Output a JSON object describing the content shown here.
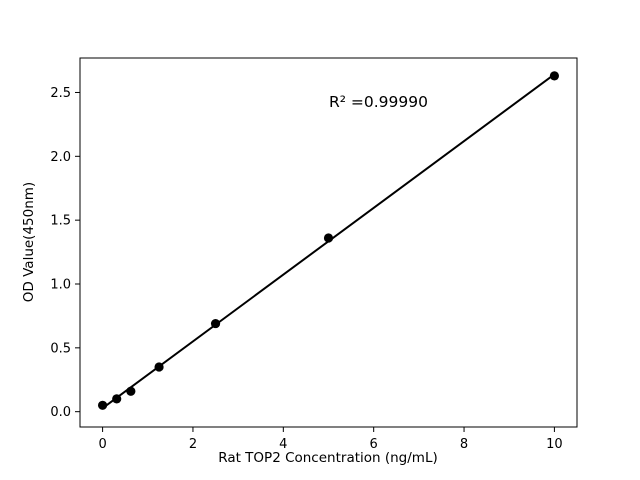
{
  "figure": {
    "background": "#ffffff",
    "foreground": "#000000"
  },
  "chart_data": {
    "type": "scatter",
    "title": "",
    "xlabel": "Rat TOP2 Concentration (ng/mL)",
    "ylabel": "OD Value(450nm)",
    "x": [
      0,
      0.3125,
      0.625,
      1.25,
      2.5,
      5,
      10
    ],
    "y": [
      0.05,
      0.1,
      0.16,
      0.35,
      0.69,
      1.36,
      2.63
    ],
    "series": [
      {
        "name": "standard-points",
        "style": "black filled circles"
      },
      {
        "name": "linear-fit-line",
        "style": "black solid line, least-squares fit through points"
      }
    ],
    "r_squared": 0.9999,
    "annotation": "R² =0.99990",
    "xlim": [
      -0.5,
      10.5
    ],
    "ylim": [
      -0.12,
      2.77
    ],
    "xticks": [
      0,
      2,
      4,
      6,
      8,
      10
    ],
    "xticklabels": [
      "0",
      "2",
      "4",
      "6",
      "8",
      "10"
    ],
    "yticks": [
      0.0,
      0.5,
      1.0,
      1.5,
      2.0,
      2.5
    ],
    "yticklabels": [
      "0.0",
      "0.5",
      "1.0",
      "1.5",
      "2.0",
      "2.5"
    ],
    "grid": false,
    "legend": "none",
    "marker_color": "#000000",
    "line_color": "#000000",
    "axis_color": "#000000"
  }
}
